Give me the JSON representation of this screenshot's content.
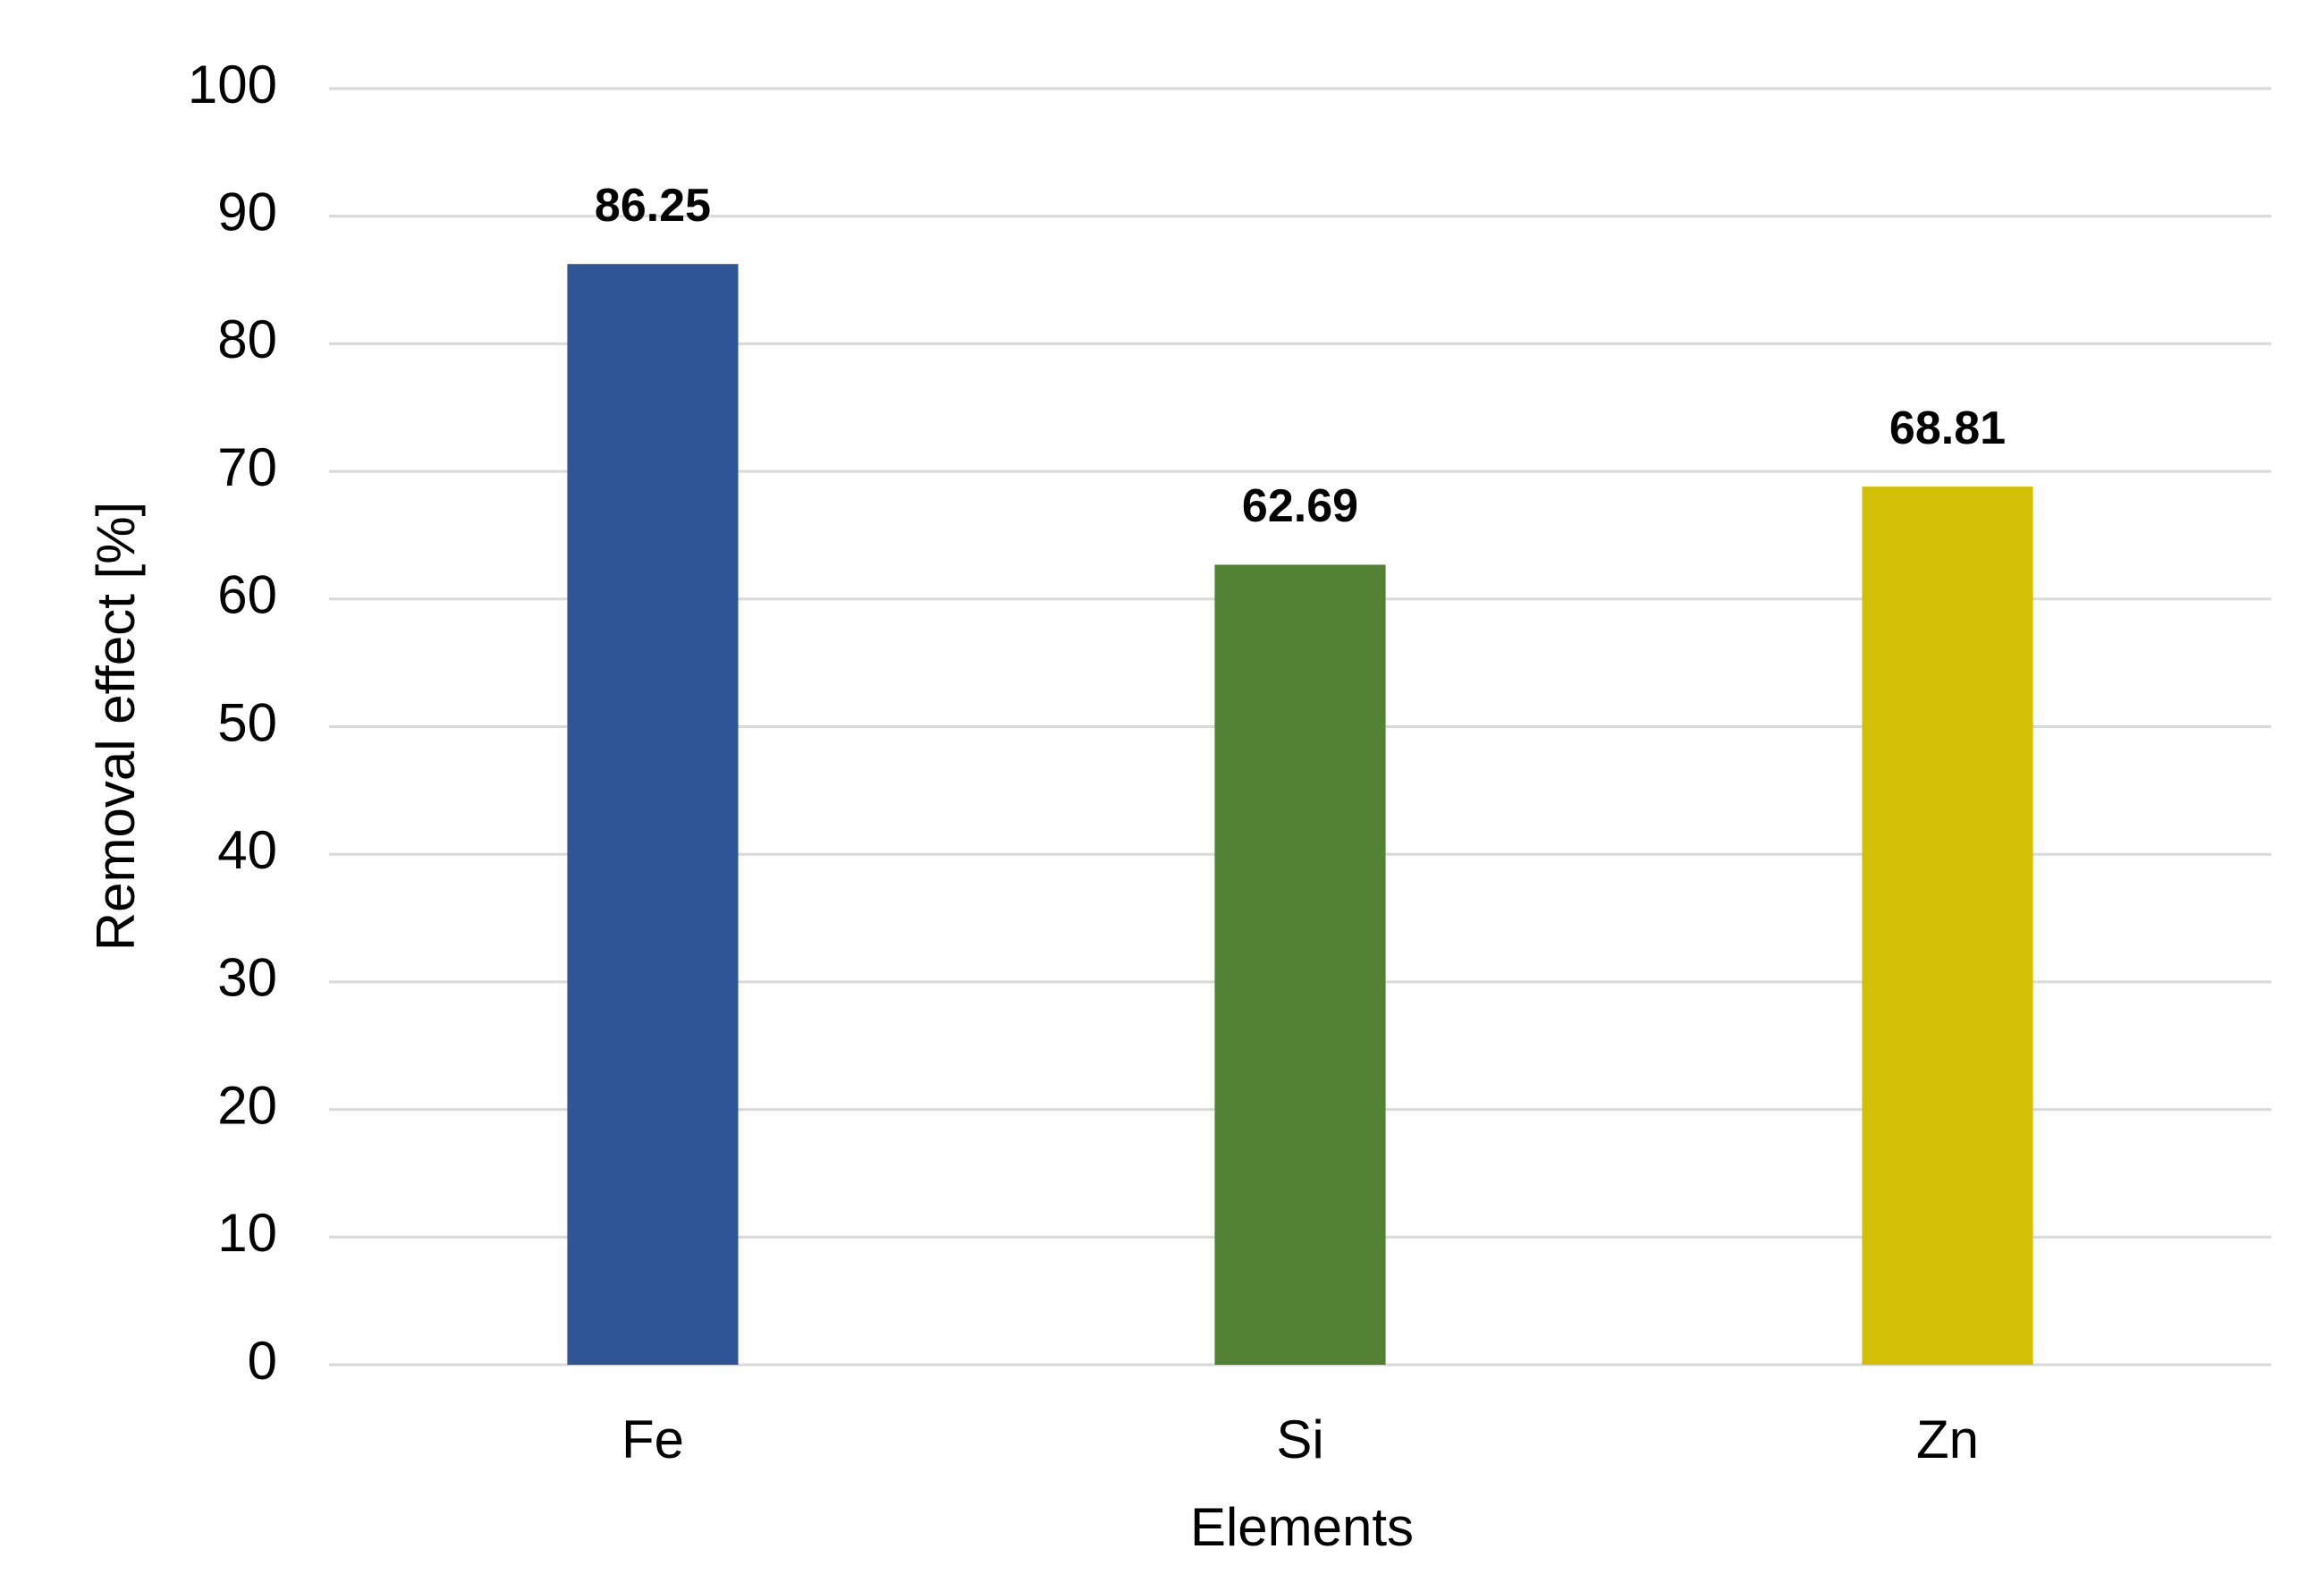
{
  "chart_data": {
    "type": "bar",
    "categories": [
      "Fe",
      "Si",
      "Zn"
    ],
    "values": [
      86.25,
      62.69,
      68.81
    ],
    "colors": [
      "#2f5597",
      "#548235",
      "#d3c006"
    ],
    "x_label": "Elements",
    "y_label": "Removal effect [%]",
    "ylim": [
      0,
      100
    ],
    "yticks": [
      0,
      10,
      20,
      30,
      40,
      50,
      60,
      70,
      80,
      90,
      100
    ],
    "grid": true,
    "data_labels": true
  }
}
